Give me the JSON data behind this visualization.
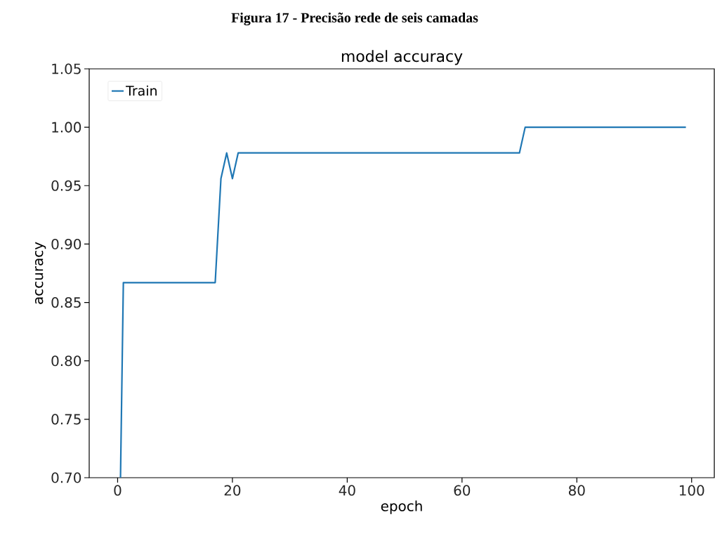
{
  "chart_data": {
    "type": "line",
    "title": "model accuracy",
    "subtitle": "Figura 17 - Precisão rede de seis camadas",
    "xlabel": "epoch",
    "ylabel": "accuracy",
    "series": [
      {
        "name": "Train",
        "color": "#1f77b4",
        "x": [
          0.5,
          1,
          17,
          18,
          19,
          20,
          21,
          70,
          71,
          99
        ],
        "values": [
          0.7,
          0.867,
          0.867,
          0.956,
          0.978,
          0.956,
          0.978,
          0.978,
          1.0,
          1.0
        ]
      }
    ],
    "xlim": [
      -4.95,
      103.95
    ],
    "ylim": [
      0.7,
      1.05
    ],
    "xticks": [
      0,
      20,
      40,
      60,
      80,
      100
    ],
    "yticks": [
      {
        "value": 0.7,
        "label": "0.70"
      },
      {
        "value": 0.75,
        "label": "0.75"
      },
      {
        "value": 0.8,
        "label": "0.80"
      },
      {
        "value": 0.85,
        "label": "0.85"
      },
      {
        "value": 0.9,
        "label": "0.90"
      },
      {
        "value": 0.95,
        "label": "0.95"
      },
      {
        "value": 1.0,
        "label": "1.00"
      },
      {
        "value": 1.05,
        "label": "1.05"
      }
    ],
    "grid": false,
    "legend": "top left",
    "marker": "none",
    "line_style": "solid"
  }
}
